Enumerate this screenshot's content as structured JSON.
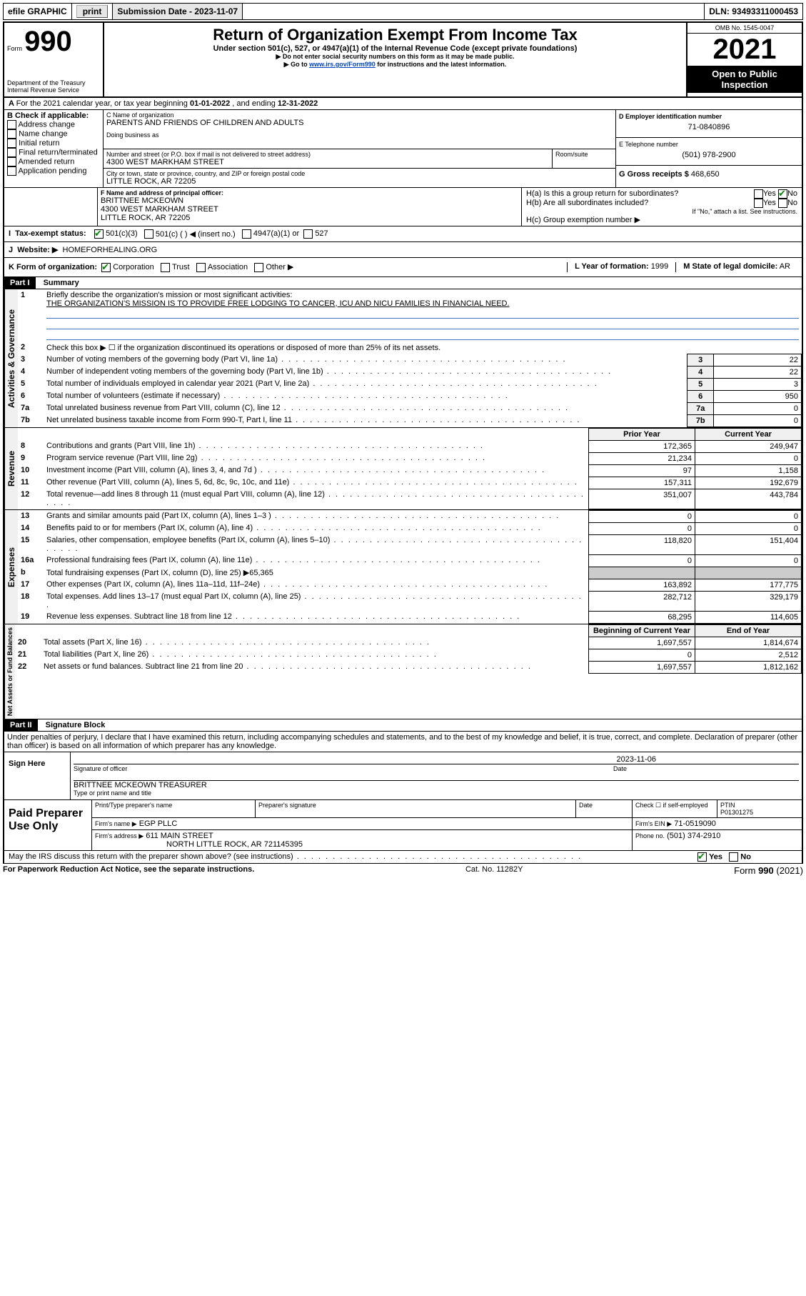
{
  "topbar": {
    "efile": "efile GRAPHIC",
    "print": "print",
    "sub_lbl": "Submission Date - 2023-11-07",
    "dln": "DLN: 93493311000453"
  },
  "header": {
    "form_word": "Form",
    "form_num": "990",
    "dept": "Department of the Treasury",
    "irs": "Internal Revenue Service",
    "title": "Return of Organization Exempt From Income Tax",
    "sub1": "Under section 501(c), 527, or 4947(a)(1) of the Internal Revenue Code (except private foundations)",
    "sub2": "▶ Do not enter social security numbers on this form as it may be made public.",
    "sub3_pre": "▶ Go to ",
    "sub3_link": "www.irs.gov/Form990",
    "sub3_post": " for instructions and the latest information.",
    "omb": "OMB No. 1545-0047",
    "year": "2021",
    "open": "Open to Public Inspection"
  },
  "period": {
    "text_a": "For the 2021 calendar year, or tax year beginning ",
    "begin": "01-01-2022",
    "text_b": " , and ending ",
    "end": "12-31-2022"
  },
  "boxB": {
    "hdr": "B Check if applicable:",
    "items": [
      "Address change",
      "Name change",
      "Initial return",
      "Final return/terminated",
      "Amended return",
      "Application pending"
    ]
  },
  "boxC": {
    "lbl": "C Name of organization",
    "name": "PARENTS AND FRIENDS OF CHILDREN AND ADULTS",
    "dba_lbl": "Doing business as",
    "addr_lbl": "Number and street (or P.O. box if mail is not delivered to street address)",
    "room_lbl": "Room/suite",
    "addr": "4300 WEST MARKHAM STREET",
    "city_lbl": "City or town, state or province, country, and ZIP or foreign postal code",
    "city": "LITTLE ROCK, AR  72205"
  },
  "boxD": {
    "lbl": "D Employer identification number",
    "val": "71-0840896"
  },
  "boxE": {
    "lbl": "E Telephone number",
    "val": "(501) 978-2900"
  },
  "boxG": {
    "lbl": "G Gross receipts $",
    "val": "468,650"
  },
  "boxF": {
    "lbl": "F Name and address of principal officer:",
    "name": "BRITTNEE MCKEOWN",
    "addr": "4300 WEST MARKHAM STREET",
    "city": "LITTLE ROCK, AR  72205"
  },
  "boxH": {
    "a_lbl": "H(a)  Is this a group return for subordinates?",
    "b_lbl": "H(b)  Are all subordinates included?",
    "note": "If \"No,\" attach a list. See instructions.",
    "c_lbl": "H(c)  Group exemption number ▶",
    "yes": "Yes",
    "no": "No"
  },
  "boxI": {
    "lbl": "Tax-exempt status:",
    "o1": "501(c)(3)",
    "o2": "501(c) (  ) ◀ (insert no.)",
    "o3": "4947(a)(1) or",
    "o4": "527"
  },
  "boxJ": {
    "lbl": "Website: ▶",
    "val": "HOMEFORHEALING.ORG"
  },
  "boxK": {
    "lbl": "K Form of organization:",
    "o1": "Corporation",
    "o2": "Trust",
    "o3": "Association",
    "o4": "Other ▶"
  },
  "boxL": {
    "lbl": "L Year of formation:",
    "val": "1999"
  },
  "boxM": {
    "lbl": "M State of legal domicile:",
    "val": "AR"
  },
  "part1": {
    "num": "Part I",
    "title": "Summary"
  },
  "summary": {
    "l1_lbl": "Briefly describe the organization's mission or most significant activities:",
    "l1_val": "THE ORGANIZATION'S MISSION IS TO PROVIDE FREE LODGING TO CANCER, ICU AND NICU FAMILIES IN FINANCIAL NEED.",
    "l2": "Check this box ▶ ☐ if the organization discontinued its operations or disposed of more than 25% of its net assets.",
    "prior_hdr": "Prior Year",
    "curr_hdr": "Current Year",
    "begin_hdr": "Beginning of Current Year",
    "end_hdr": "End of Year",
    "side_gov": "Activities & Governance",
    "side_rev": "Revenue",
    "side_exp": "Expenses",
    "side_net": "Net Assets or Fund Balances",
    "rows_single": [
      {
        "n": "3",
        "t": "Number of voting members of the governing body (Part VI, line 1a)",
        "v": "22"
      },
      {
        "n": "4",
        "t": "Number of independent voting members of the governing body (Part VI, line 1b)",
        "v": "22"
      },
      {
        "n": "5",
        "t": "Total number of individuals employed in calendar year 2021 (Part V, line 2a)",
        "v": "3"
      },
      {
        "n": "6",
        "t": "Total number of volunteers (estimate if necessary)",
        "v": "950"
      },
      {
        "n": "7a",
        "t": "Total unrelated business revenue from Part VIII, column (C), line 12",
        "v": "0"
      },
      {
        "n": "7b",
        "t": "Net unrelated business taxable income from Form 990-T, Part I, line 11",
        "v": "0"
      }
    ],
    "rows_rev": [
      {
        "n": "8",
        "t": "Contributions and grants (Part VIII, line 1h)",
        "p": "172,365",
        "c": "249,947"
      },
      {
        "n": "9",
        "t": "Program service revenue (Part VIII, line 2g)",
        "p": "21,234",
        "c": "0"
      },
      {
        "n": "10",
        "t": "Investment income (Part VIII, column (A), lines 3, 4, and 7d )",
        "p": "97",
        "c": "1,158"
      },
      {
        "n": "11",
        "t": "Other revenue (Part VIII, column (A), lines 5, 6d, 8c, 9c, 10c, and 11e)",
        "p": "157,311",
        "c": "192,679"
      },
      {
        "n": "12",
        "t": "Total revenue—add lines 8 through 11 (must equal Part VIII, column (A), line 12)",
        "p": "351,007",
        "c": "443,784"
      }
    ],
    "rows_exp": [
      {
        "n": "13",
        "t": "Grants and similar amounts paid (Part IX, column (A), lines 1–3 )",
        "p": "0",
        "c": "0"
      },
      {
        "n": "14",
        "t": "Benefits paid to or for members (Part IX, column (A), line 4)",
        "p": "0",
        "c": "0"
      },
      {
        "n": "15",
        "t": "Salaries, other compensation, employee benefits (Part IX, column (A), lines 5–10)",
        "p": "118,820",
        "c": "151,404"
      },
      {
        "n": "16a",
        "t": "Professional fundraising fees (Part IX, column (A), line 11e)",
        "p": "0",
        "c": "0"
      }
    ],
    "row_16b": {
      "n": "b",
      "t": "Total fundraising expenses (Part IX, column (D), line 25) ▶",
      "v": "65,365"
    },
    "rows_exp2": [
      {
        "n": "17",
        "t": "Other expenses (Part IX, column (A), lines 11a–11d, 11f–24e)",
        "p": "163,892",
        "c": "177,775"
      },
      {
        "n": "18",
        "t": "Total expenses. Add lines 13–17 (must equal Part IX, column (A), line 25)",
        "p": "282,712",
        "c": "329,179"
      },
      {
        "n": "19",
        "t": "Revenue less expenses. Subtract line 18 from line 12",
        "p": "68,295",
        "c": "114,605"
      }
    ],
    "rows_net": [
      {
        "n": "20",
        "t": "Total assets (Part X, line 16)",
        "p": "1,697,557",
        "c": "1,814,674"
      },
      {
        "n": "21",
        "t": "Total liabilities (Part X, line 26)",
        "p": "0",
        "c": "2,512"
      },
      {
        "n": "22",
        "t": "Net assets or fund balances. Subtract line 21 from line 20",
        "p": "1,697,557",
        "c": "1,812,162"
      }
    ]
  },
  "part2": {
    "num": "Part II",
    "title": "Signature Block"
  },
  "sig": {
    "jurat": "Under penalties of perjury, I declare that I have examined this return, including accompanying schedules and statements, and to the best of my knowledge and belief, it is true, correct, and complete. Declaration of preparer (other than officer) is based on all information of which preparer has any knowledge.",
    "sign_here": "Sign Here",
    "sig_officer": "Signature of officer",
    "date_lbl": "Date",
    "date_val": "2023-11-06",
    "name": "BRITTNEE MCKEOWN  TREASURER",
    "name_lbl": "Type or print name and title",
    "paid": "Paid Preparer Use Only",
    "prep_name_lbl": "Print/Type preparer's name",
    "prep_sig_lbl": "Preparer's signature",
    "check_lbl": "Check ☐ if self-employed",
    "ptin_lbl": "PTIN",
    "ptin": "P01301275",
    "firm_name_lbl": "Firm's name  ▶",
    "firm_name": "EGP PLLC",
    "firm_ein_lbl": "Firm's EIN ▶",
    "firm_ein": "71-0519090",
    "firm_addr_lbl": "Firm's address ▶",
    "firm_addr": "611 MAIN STREET",
    "firm_city": "NORTH LITTLE ROCK, AR  721145395",
    "phone_lbl": "Phone no.",
    "phone": "(501) 374-2910",
    "discuss": "May the IRS discuss this return with the preparer shown above? (see instructions)"
  },
  "footer": {
    "l": "For Paperwork Reduction Act Notice, see the separate instructions.",
    "c": "Cat. No. 11282Y",
    "r": "Form 990 (2021)"
  }
}
